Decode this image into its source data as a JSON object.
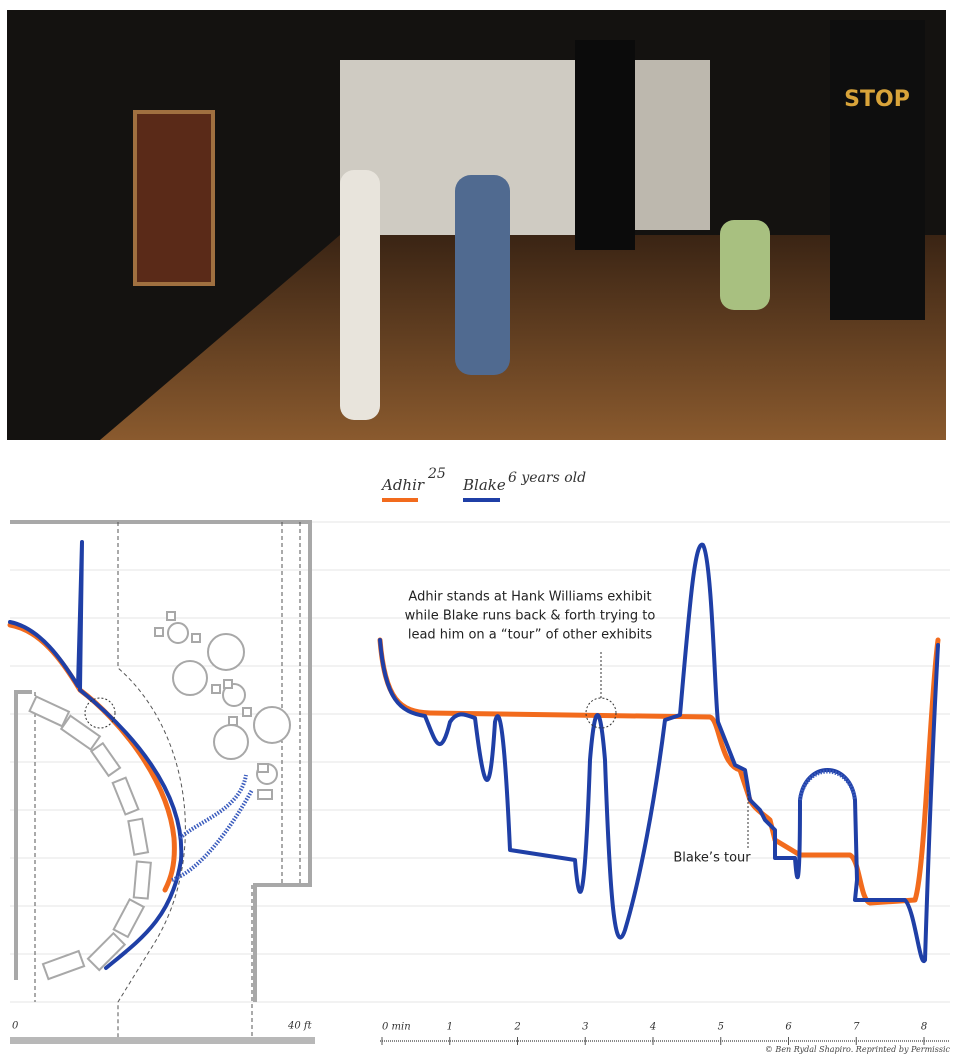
{
  "legend": {
    "adhir": {
      "name": "Adhir",
      "age": "25"
    },
    "blake": {
      "name": "Blake",
      "age": "6 years old"
    }
  },
  "annotations": {
    "hank_williams": [
      "Adhir stands at Hank Williams exhibit",
      "while Blake runs back & forth trying to",
      "lead him on a “tour” of other exhibits"
    ],
    "blakes_tour": "Blake’s tour"
  },
  "map_scale": {
    "start": "0",
    "end": "40 ft"
  },
  "time_axis": {
    "ticks": [
      "0 min",
      "1",
      "2",
      "3",
      "4",
      "5",
      "6",
      "7",
      "8"
    ]
  },
  "credit": "© Ben Rydal Shapiro. Reprinted by Permissic"
}
